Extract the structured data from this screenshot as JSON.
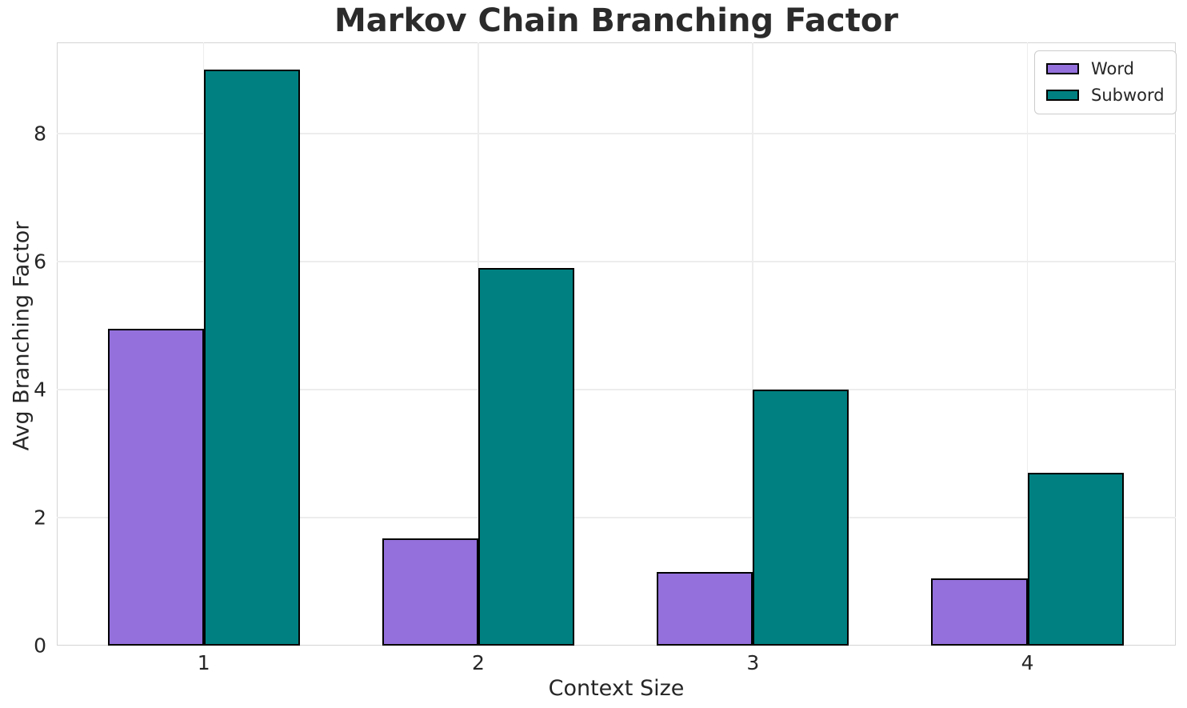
{
  "figure": {
    "title": "Markov Chain Branching Factor",
    "xlabel": "Context Size",
    "ylabel": "Avg Branching Factor"
  },
  "legend": {
    "items": [
      {
        "label": "Word",
        "color": "#9370DB"
      },
      {
        "label": "Subword",
        "color": "#008080"
      }
    ]
  },
  "colors": {
    "word": "#9370DB",
    "subword": "#008080",
    "bar_edge": "#000000",
    "grid": "#ededed",
    "spine": "#d4d4d4",
    "text": "#262626"
  },
  "chart_data": {
    "type": "bar",
    "title": "Markov Chain Branching Factor",
    "xlabel": "Context Size",
    "ylabel": "Avg Branching Factor",
    "categories": [
      "1",
      "2",
      "3",
      "4"
    ],
    "series": [
      {
        "name": "Word",
        "color": "#9370DB",
        "values": [
          4.95,
          1.68,
          1.15,
          1.05
        ]
      },
      {
        "name": "Subword",
        "color": "#008080",
        "values": [
          9.0,
          5.9,
          4.0,
          2.7
        ]
      }
    ],
    "bar_width": 0.35,
    "bar_edge_color": "#000000",
    "bar_edge_width": 2,
    "xlim": [
      0.465,
      4.54
    ],
    "ylim": [
      0,
      9.425
    ],
    "yticks": [
      0,
      2,
      4,
      6,
      8
    ],
    "grid": true,
    "grid_axes": "both",
    "legend_position": "upper right"
  }
}
